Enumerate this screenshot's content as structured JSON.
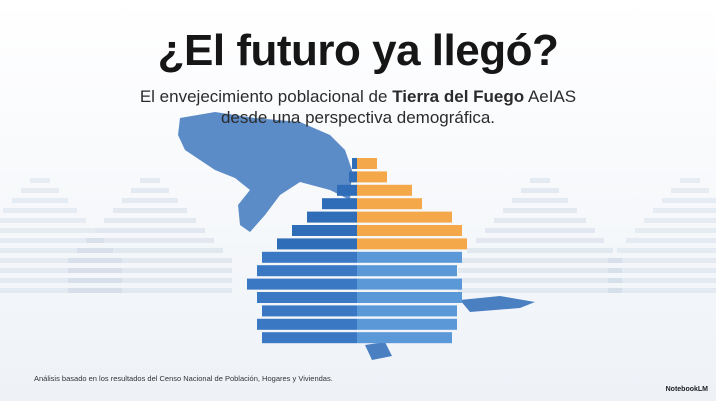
{
  "title": "¿El futuro ya llegó?",
  "subtitle": {
    "line1_start": "El envejecimiento poblacional de",
    "line1_bold": "Tierra del Fuego",
    "line1_end": "AeIAS",
    "line2": "desde una perspectiva demográfica."
  },
  "footer": "Análisis basado en los resultados del Censo Nacional de Población, Hogares y Viviendas.",
  "brand": "NotebookLM"
}
